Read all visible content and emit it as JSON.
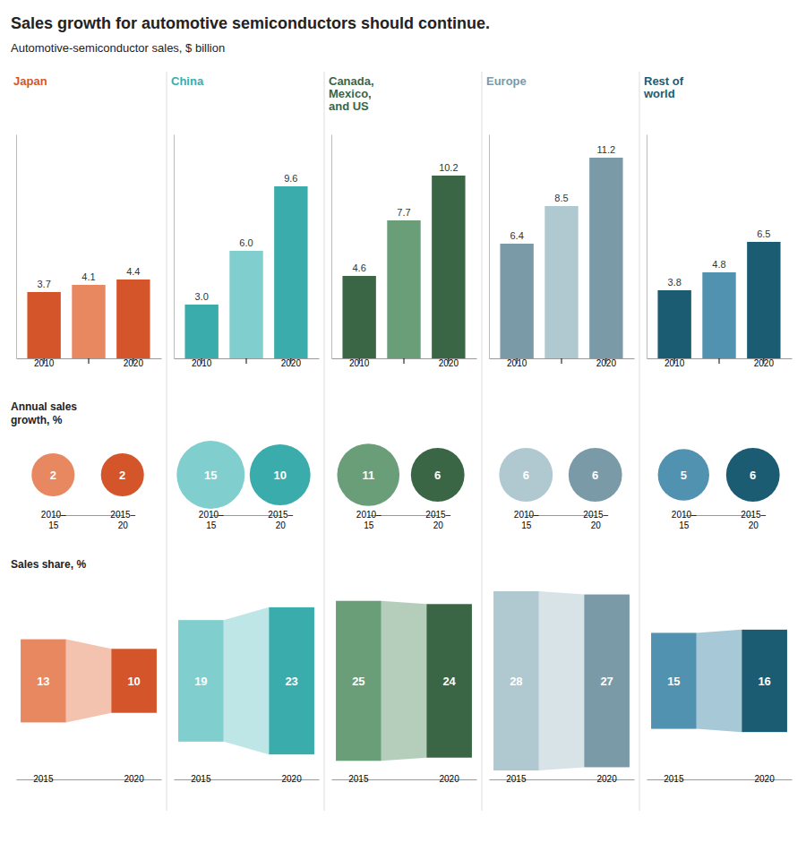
{
  "chart_data": [
    {
      "type": "bar",
      "title": "Japan",
      "annotations": [
        "Sales growth for automotive semiconductors should continue.",
        "Automotive-semiconductor sales, $ billion"
      ],
      "categories": [
        "2010",
        null,
        "2020"
      ],
      "values": [
        3.7,
        4.1,
        4.4
      ],
      "value_labels": [
        "3.7",
        "4.1",
        "4.4"
      ],
      "colors": [
        "#d4552a",
        "#e88860",
        "#d4552a"
      ],
      "ylim": [
        0,
        12.5
      ],
      "tick_labels": "x",
      "data_labels": true
    },
    {
      "type": "bar",
      "title": "China",
      "categories": [
        "2010",
        null,
        "2020"
      ],
      "values": [
        3.0,
        6.0,
        9.6
      ],
      "value_labels": [
        "3.0",
        "6.0",
        "9.6"
      ],
      "colors": [
        "#3aacac",
        "#80cece",
        "#3aacac"
      ],
      "ylim": [
        0,
        12.5
      ],
      "tick_labels": "x",
      "data_labels": true
    },
    {
      "type": "bar",
      "title": "Canada,\nMexico,\nand US",
      "categories": [
        "2010",
        null,
        "2020"
      ],
      "values": [
        4.6,
        7.7,
        10.2
      ],
      "value_labels": [
        "4.6",
        "7.7",
        "10.2"
      ],
      "colors": [
        "#3a6645",
        "#6a9e78",
        "#3a6645"
      ],
      "ylim": [
        0,
        12.5
      ],
      "tick_labels": "x",
      "data_labels": true
    },
    {
      "type": "bar",
      "title": "Europe",
      "categories": [
        "2010",
        null,
        "2020"
      ],
      "values": [
        6.4,
        8.5,
        11.2
      ],
      "value_labels": [
        "6.4",
        "8.5",
        "11.2"
      ],
      "colors": [
        "#7a9aa8",
        "#b0c8d0",
        "#7a9aa8"
      ],
      "ylim": [
        0,
        12.5
      ],
      "tick_labels": "x",
      "data_labels": true
    },
    {
      "type": "bar",
      "title": "Rest of\nworld",
      "categories": [
        "2010",
        null,
        "2020"
      ],
      "values": [
        3.8,
        4.8,
        6.5
      ],
      "value_labels": [
        "3.8",
        "4.8",
        "6.5"
      ],
      "colors": [
        "#1b5c72",
        "#5092b0",
        "#1b5c72"
      ],
      "ylim": [
        0,
        12.5
      ],
      "tick_labels": "x",
      "data_labels": true
    },
    {
      "type": "bubble",
      "title": "Annual sales\ngrowth, %",
      "categories": [
        "2010–\n15",
        "2015–\n20"
      ],
      "values": [
        2,
        2
      ],
      "colors": [
        "#e88860",
        "#d4552a"
      ],
      "tick_labels": "x",
      "data_labels": true
    },
    {
      "type": "bubble",
      "categories": [
        "2010–\n15",
        "2015–\n20"
      ],
      "values": [
        15,
        10
      ],
      "colors": [
        "#80cece",
        "#3aacac"
      ],
      "tick_labels": "x",
      "data_labels": true
    },
    {
      "type": "bubble",
      "categories": [
        "2010–\n15",
        "2015–\n20"
      ],
      "values": [
        11,
        6
      ],
      "colors": [
        "#6a9e78",
        "#3a6645"
      ],
      "tick_labels": "x",
      "data_labels": true
    },
    {
      "type": "bubble",
      "categories": [
        "2010–\n15",
        "2015–\n20"
      ],
      "values": [
        6,
        6
      ],
      "colors": [
        "#b0c8d0",
        "#7a9aa8"
      ],
      "tick_labels": "x",
      "data_labels": true
    },
    {
      "type": "bubble",
      "categories": [
        "2010–\n15",
        "2015–\n20"
      ],
      "values": [
        5,
        6
      ],
      "colors": [
        "#5092b0",
        "#1b5c72"
      ],
      "tick_labels": "x",
      "data_labels": true
    },
    {
      "type": "ribbon",
      "title": "Sales share, %",
      "categories": [
        "2015",
        "2020"
      ],
      "values": [
        13,
        10
      ],
      "colors": [
        "#e88860",
        "#d4552a"
      ],
      "tick_labels": "x",
      "data_labels": true
    },
    {
      "type": "ribbon",
      "categories": [
        "2015",
        "2020"
      ],
      "values": [
        19,
        23
      ],
      "colors": [
        "#80cece",
        "#3aacac"
      ],
      "tick_labels": "x",
      "data_labels": true
    },
    {
      "type": "ribbon",
      "categories": [
        "2015",
        "2020"
      ],
      "values": [
        25,
        24
      ],
      "colors": [
        "#6a9e78",
        "#3a6645"
      ],
      "tick_labels": "x",
      "data_labels": true
    },
    {
      "type": "ribbon",
      "categories": [
        "2015",
        "2020"
      ],
      "values": [
        28,
        27
      ],
      "colors": [
        "#b0c8d0",
        "#7a9aa8"
      ],
      "tick_labels": "x",
      "data_labels": true
    },
    {
      "type": "ribbon",
      "categories": [
        "2015",
        "2020"
      ],
      "values": [
        15,
        16
      ],
      "colors": [
        "#5092b0",
        "#1b5c72"
      ],
      "tick_labels": "x",
      "data_labels": true
    }
  ]
}
